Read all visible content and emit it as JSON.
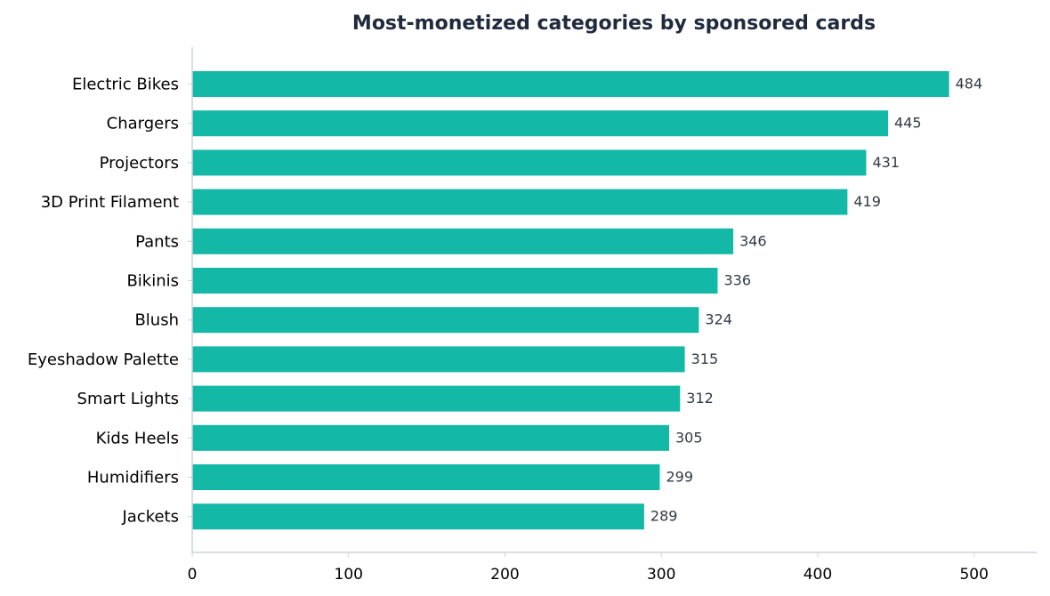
{
  "chart_data": {
    "type": "bar",
    "orientation": "horizontal",
    "title": "Most-monetized categories by sponsored cards",
    "xlabel": "",
    "ylabel": "",
    "xlim": [
      0,
      540
    ],
    "xticks": [
      0,
      100,
      200,
      300,
      400,
      500
    ],
    "grid": false,
    "legend": "none",
    "bar_color": "#14b8a6",
    "categories": [
      "Electric Bikes",
      "Chargers",
      "Projectors",
      "3D Print Filament",
      "Pants",
      "Bikinis",
      "Blush",
      "Eyeshadow Palette",
      "Smart Lights",
      "Kids Heels",
      "Humidifiers",
      "Jackets"
    ],
    "values": [
      484,
      445,
      431,
      419,
      346,
      336,
      324,
      315,
      312,
      305,
      299,
      289
    ]
  }
}
